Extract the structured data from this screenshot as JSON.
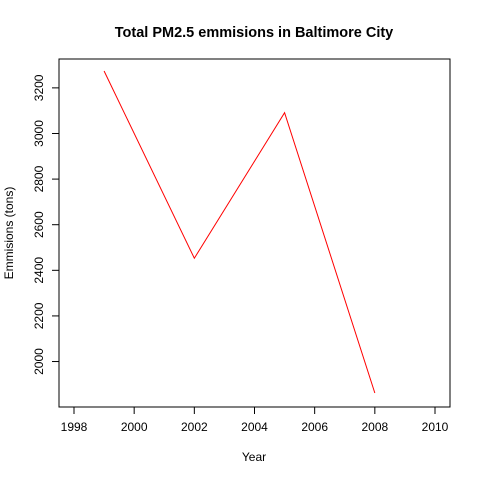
{
  "chart_data": {
    "type": "line",
    "title": "Total PM2.5 emmisions in Baltimore City",
    "xlabel": "Year",
    "ylabel": "Emmisions (tons)",
    "xlim": [
      1998,
      2010
    ],
    "ylim": [
      1862,
      3274
    ],
    "x_ticks": [
      1998,
      2000,
      2002,
      2004,
      2006,
      2008,
      2010
    ],
    "y_ticks": [
      2000,
      2200,
      2400,
      2600,
      2800,
      3000,
      3200
    ],
    "grid": false,
    "legend": "none",
    "series": [
      {
        "color": "#ff0000",
        "x": [
          1999,
          2002,
          2005,
          2008
        ],
        "y": [
          3274,
          2453,
          3091,
          1862
        ]
      }
    ]
  }
}
